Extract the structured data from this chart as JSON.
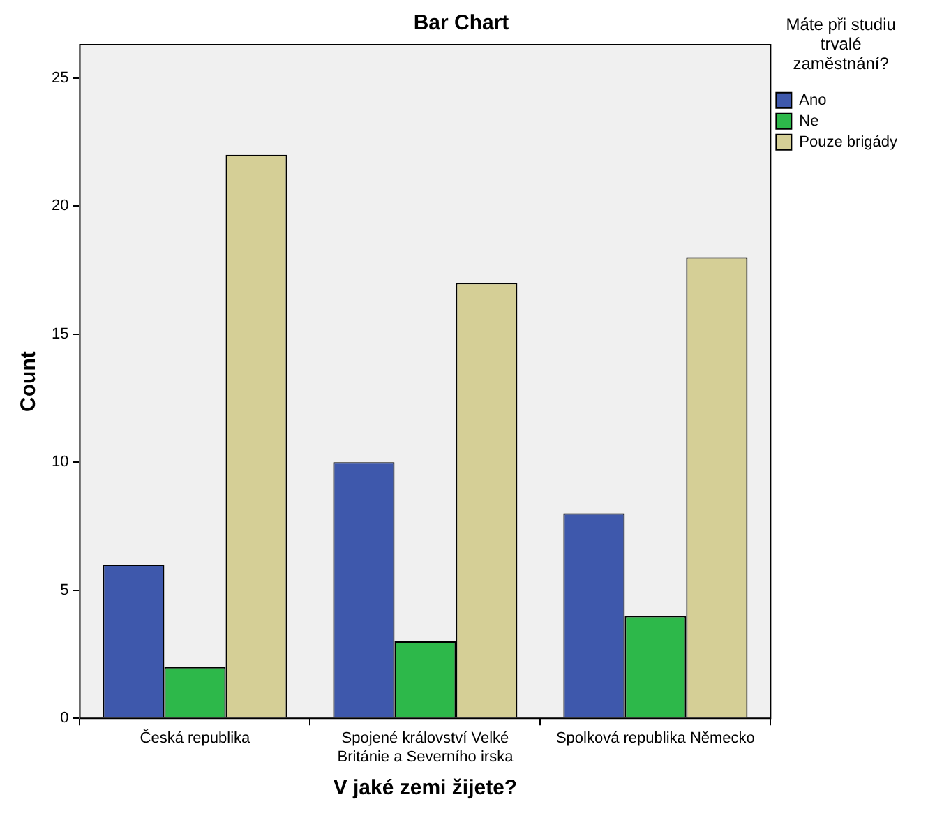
{
  "chart_data": {
    "type": "bar",
    "title": "Bar Chart",
    "xlabel": "V jaké zemi žijete?",
    "ylabel": "Count",
    "legend_title": "Máte při studiu trvalé zaměstnání?",
    "categories": [
      "Česká republika",
      "Spojené království Velké Británie a Severního irska",
      "Spolková republika Německo"
    ],
    "series": [
      {
        "name": "Ano",
        "color": "#3e58ac",
        "values": [
          6,
          10,
          8
        ]
      },
      {
        "name": "Ne",
        "color": "#2db84a",
        "values": [
          2,
          3,
          4
        ]
      },
      {
        "name": "Pouze brigády",
        "color": "#d5cf96",
        "values": [
          22,
          17,
          18
        ]
      }
    ],
    "ylim": [
      0,
      26.3
    ],
    "yticks": [
      0,
      5,
      10,
      15,
      20,
      25
    ],
    "grid": false,
    "legend": "top right"
  }
}
